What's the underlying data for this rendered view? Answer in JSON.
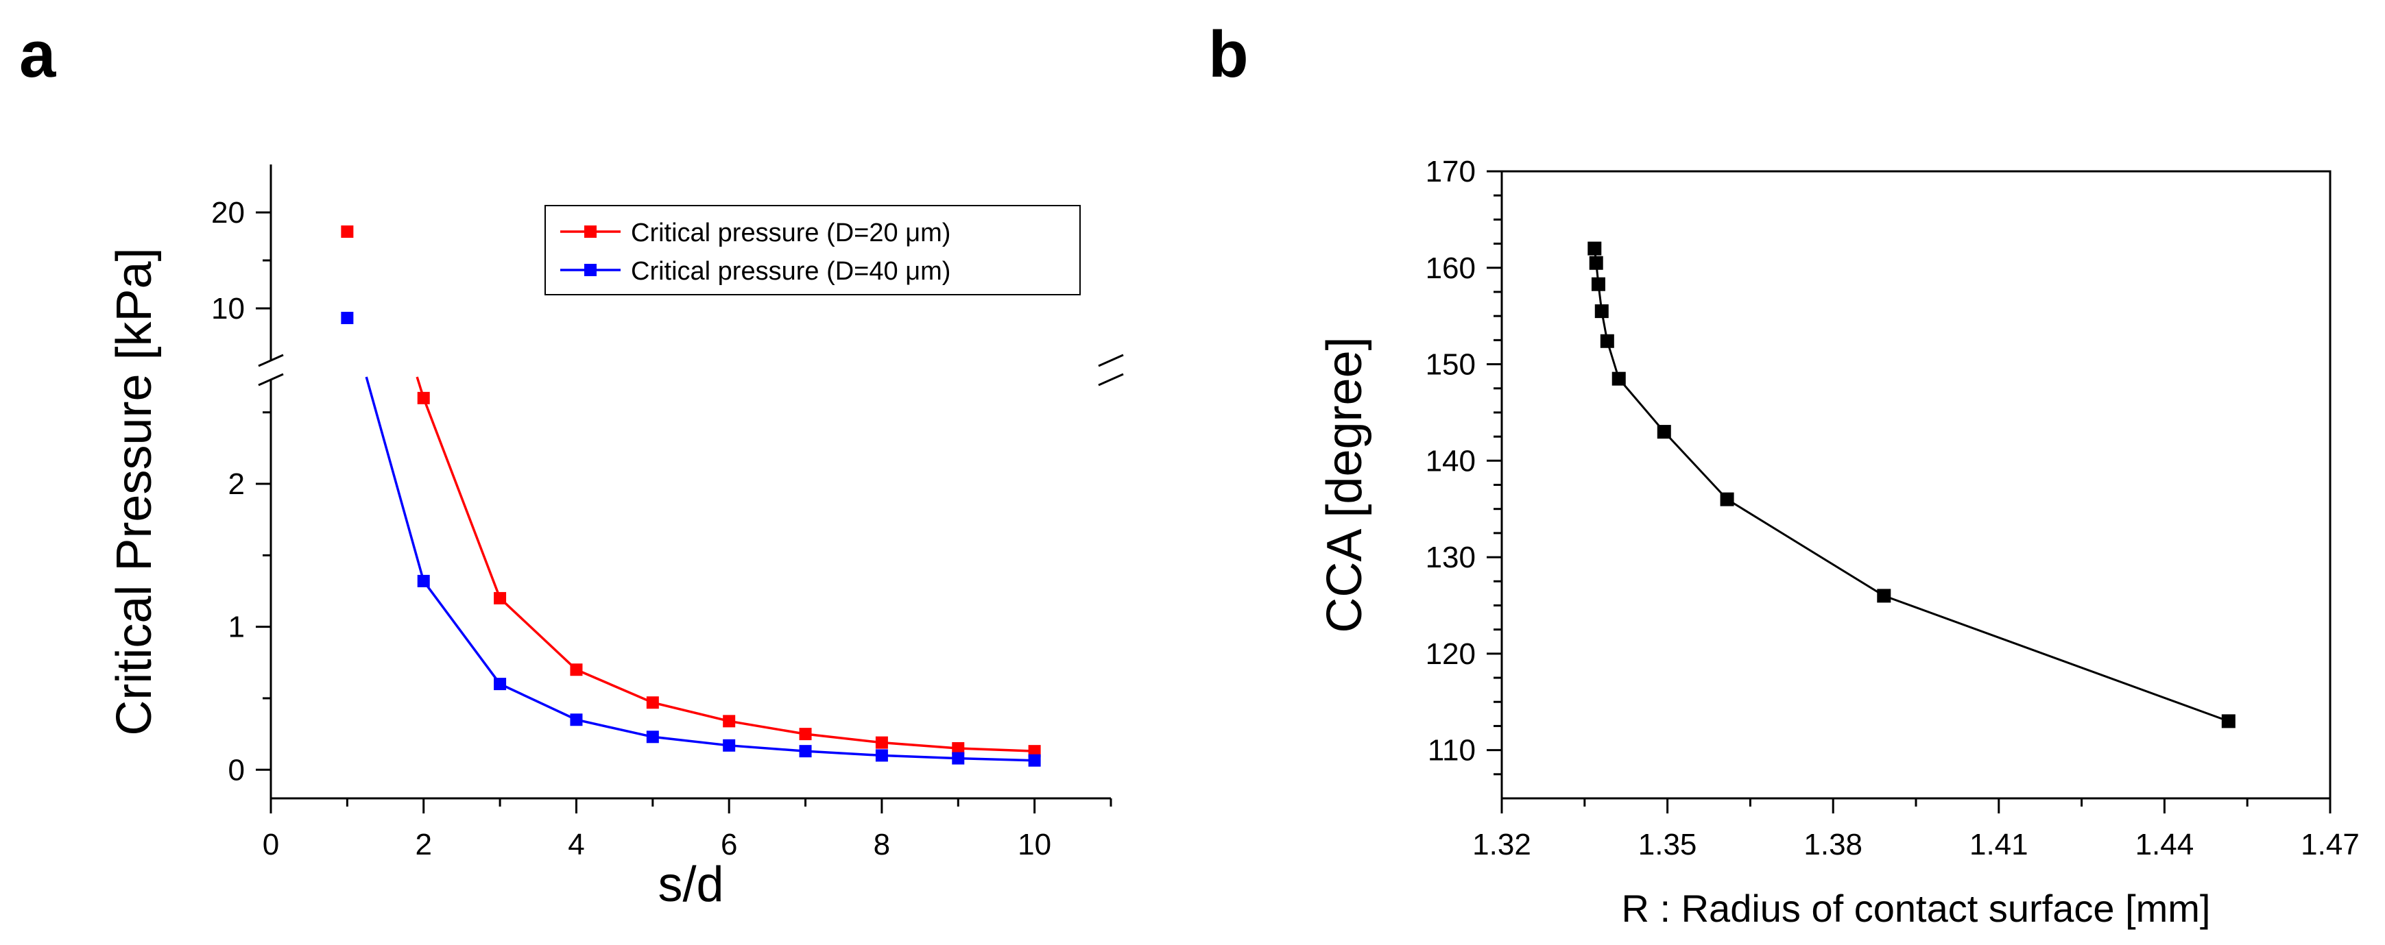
{
  "figure": {
    "panels": [
      {
        "label": "a"
      },
      {
        "label": "b"
      }
    ]
  },
  "chart_data": [
    {
      "panel": "a",
      "type": "line",
      "title": "",
      "xlabel": "s/d",
      "ylabel": "Critical Pressure [kPa]",
      "xlim": [
        0,
        11
      ],
      "xticks": [
        0,
        2,
        4,
        6,
        8,
        10
      ],
      "xtick_labels": [
        "0",
        "2",
        "4",
        "6",
        "8",
        "10"
      ],
      "ylim_lower": [
        -0.2,
        2.7
      ],
      "ylim_upper": [
        5,
        25
      ],
      "yticks_lower": [
        0,
        1,
        2
      ],
      "ytick_labels_lower": [
        "0",
        "1",
        "2"
      ],
      "yticks_upper": [
        10,
        20
      ],
      "ytick_labels_upper": [
        "10",
        "20"
      ],
      "axis_break": true,
      "legend_position": "top-right",
      "x": [
        1,
        2,
        3,
        4,
        5,
        6,
        7,
        8,
        9,
        10
      ],
      "series": [
        {
          "name": "Critical pressure (D=20 μm)",
          "color": "#ff0000",
          "values": [
            18,
            2.6,
            1.2,
            0.7,
            0.47,
            0.34,
            0.25,
            0.19,
            0.15,
            0.13
          ]
        },
        {
          "name": "Critical pressure (D=40 μm)",
          "color": "#0000ff",
          "values": [
            9,
            1.32,
            0.6,
            0.35,
            0.23,
            0.17,
            0.13,
            0.1,
            0.08,
            0.065
          ]
        }
      ]
    },
    {
      "panel": "b",
      "type": "line",
      "title": "",
      "xlabel": "R : Radius of contact surface [mm]",
      "ylabel": "CCA [degree]",
      "xlim": [
        1.32,
        1.47
      ],
      "ylim": [
        105,
        170
      ],
      "xticks": [
        1.32,
        1.35,
        1.38,
        1.41,
        1.44,
        1.47
      ],
      "xtick_labels": [
        "1.32",
        "1.35",
        "1.38",
        "1.41",
        "1.44",
        "1.47"
      ],
      "yticks": [
        110,
        120,
        130,
        140,
        150,
        160,
        170
      ],
      "ytick_labels": [
        "110",
        "120",
        "130",
        "140",
        "150",
        "160",
        "170"
      ],
      "series": [
        {
          "name": "CCA",
          "color": "#000000",
          "x": [
            1.3368,
            1.3371,
            1.3375,
            1.3381,
            1.3391,
            1.3412,
            1.3494,
            1.3608,
            1.3892,
            1.4516
          ],
          "values": [
            162,
            160.5,
            158.3,
            155.5,
            152.4,
            148.5,
            143,
            136,
            126,
            113
          ]
        }
      ]
    }
  ]
}
